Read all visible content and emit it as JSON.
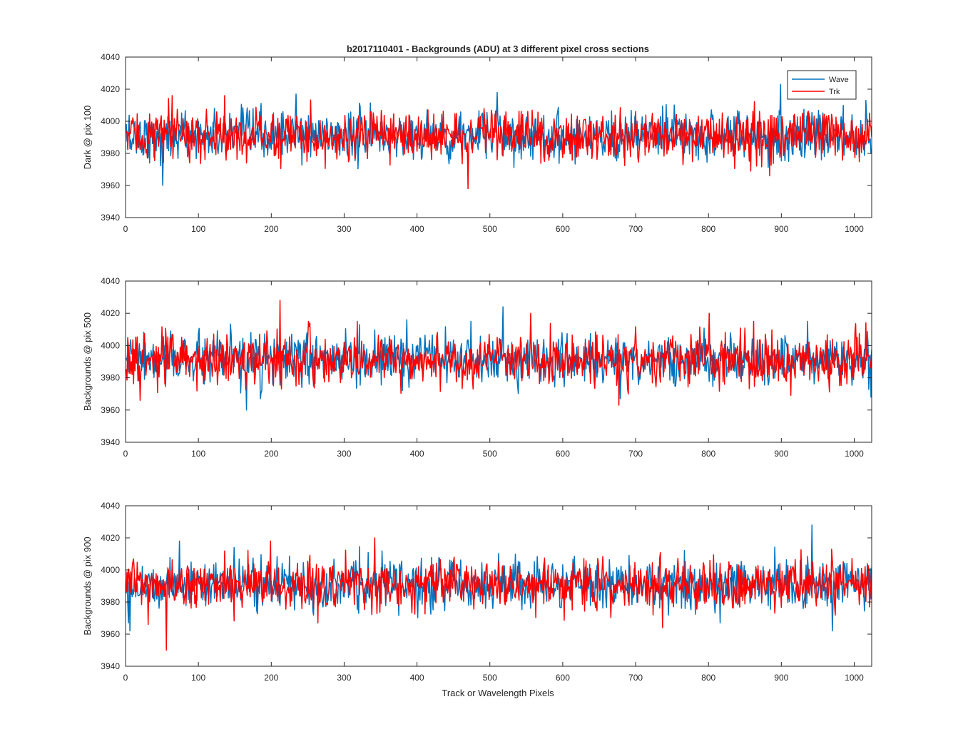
{
  "title": "b2017110401 - Backgrounds (ADU) at 3 different pixel cross sections",
  "xlabel": "Track or Wavelength Pixels",
  "colors": {
    "Wave": "#0072bd",
    "Trk": "#ff0000",
    "axes": "#262626"
  },
  "chart_data": [
    {
      "type": "line",
      "title": "b2017110401 - Backgrounds (ADU) at 3 different pixel cross sections",
      "ylabel": "Dark @ pix 100",
      "xlabel": "",
      "xlim": [
        0,
        1024
      ],
      "ylim": [
        3940,
        4040
      ],
      "xticks": [
        0,
        100,
        200,
        300,
        400,
        500,
        600,
        700,
        800,
        900,
        1000
      ],
      "yticks": [
        3940,
        3960,
        3980,
        4000,
        4020,
        4040
      ],
      "legend": {
        "entries": [
          "Wave",
          "Trk"
        ],
        "location": "top-right"
      },
      "series": [
        {
          "name": "Wave",
          "n_points": 1024,
          "mean": 3991,
          "std": 7.5,
          "spikes": [
            [
              50,
              3960
            ],
            [
              233,
              4017
            ],
            [
              509,
              4018
            ],
            [
              898,
              4023
            ],
            [
              1015,
              4013
            ]
          ]
        },
        {
          "name": "Trk",
          "n_points": 1024,
          "mean": 3991,
          "std": 7.5,
          "spikes": [
            [
              469,
              3958
            ],
            [
              63,
              4016
            ],
            [
              135,
              4016
            ],
            [
              883,
              3966
            ]
          ]
        }
      ]
    },
    {
      "type": "line",
      "title": "",
      "ylabel": "Backgrounds @ pix 500",
      "xlabel": "",
      "xlim": [
        0,
        1024
      ],
      "ylim": [
        3940,
        4040
      ],
      "xticks": [
        0,
        100,
        200,
        300,
        400,
        500,
        600,
        700,
        800,
        900,
        1000
      ],
      "yticks": [
        3940,
        3960,
        3980,
        4000,
        4020,
        4040
      ],
      "series": [
        {
          "name": "Wave",
          "n_points": 1024,
          "mean": 3991,
          "std": 7.5,
          "spikes": [
            [
              165,
              3960
            ],
            [
              517,
              4024
            ],
            [
              385,
              4016
            ],
            [
              1022,
              3968
            ]
          ]
        },
        {
          "name": "Trk",
          "n_points": 1024,
          "mean": 3991,
          "std": 7.5,
          "spikes": [
            [
              211,
              4028
            ],
            [
              555,
              4020
            ],
            [
              800,
              4020
            ],
            [
              19,
              3966
            ],
            [
              676,
              3963
            ]
          ]
        }
      ]
    },
    {
      "type": "line",
      "title": "",
      "ylabel": "Backgrounds @ pix 900",
      "xlabel": "Track or Wavelength Pixels",
      "xlim": [
        0,
        1024
      ],
      "ylim": [
        3940,
        4040
      ],
      "xticks": [
        0,
        100,
        200,
        300,
        400,
        500,
        600,
        700,
        800,
        900,
        1000
      ],
      "yticks": [
        3940,
        3960,
        3980,
        4000,
        4020,
        4040
      ],
      "series": [
        {
          "name": "Wave",
          "n_points": 1024,
          "mean": 3991,
          "std": 7.5,
          "spikes": [
            [
              941,
              4028
            ],
            [
              73,
              4018
            ],
            [
              5,
              3962
            ],
            [
              969,
              3962
            ]
          ]
        },
        {
          "name": "Trk",
          "n_points": 1024,
          "mean": 3991,
          "std": 7.5,
          "spikes": [
            [
              55,
              3950
            ],
            [
              198,
              4018
            ],
            [
              341,
              4020
            ],
            [
              30,
              3966
            ],
            [
              736,
              3964
            ]
          ]
        }
      ]
    }
  ]
}
